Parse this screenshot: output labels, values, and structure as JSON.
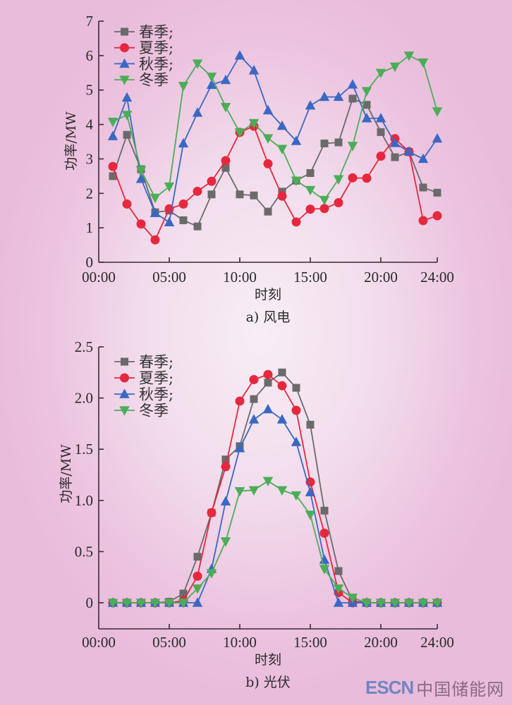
{
  "colors": {
    "spring": "#6a6a6a",
    "summer": "#e6283f",
    "autumn": "#3a68c2",
    "winter": "#4cad58"
  },
  "chart_data": [
    {
      "id": "wind",
      "type": "line",
      "title": "a) 风电",
      "xlabel": "时刻",
      "ylabel": "功率/MW",
      "xlim": [
        0,
        24
      ],
      "ylim": [
        0,
        7
      ],
      "x_ticks": [
        0,
        5,
        10,
        15,
        20,
        24
      ],
      "x_tick_labels": [
        "00:00",
        "05:00",
        "10:00",
        "15:00",
        "20:00",
        "24:00"
      ],
      "y_ticks": [
        0,
        1,
        2,
        3,
        4,
        5,
        6,
        7
      ],
      "y_tick_labels": [
        "0",
        "1",
        "2",
        "3",
        "4",
        "5",
        "6",
        "7"
      ],
      "legend_position": "top-left",
      "grid": false,
      "x": [
        1,
        2,
        3,
        4,
        5,
        6,
        7,
        8,
        9,
        10,
        11,
        12,
        13,
        14,
        15,
        16,
        17,
        18,
        19,
        20,
        21,
        22,
        23,
        24
      ],
      "series": [
        {
          "key": "spring",
          "name": "春季;",
          "marker": "square",
          "values": [
            2.5,
            3.7,
            2.7,
            1.45,
            1.5,
            1.22,
            1.04,
            1.97,
            2.74,
            1.97,
            1.94,
            1.47,
            2.05,
            2.37,
            2.59,
            3.45,
            3.48,
            4.75,
            4.57,
            3.78,
            3.05,
            3.2,
            2.17,
            2.02
          ]
        },
        {
          "key": "summer",
          "name": "夏季;",
          "marker": "circle",
          "values": [
            2.78,
            1.69,
            1.11,
            0.65,
            1.55,
            1.69,
            2.06,
            2.35,
            2.95,
            3.77,
            3.95,
            2.86,
            1.92,
            1.17,
            1.54,
            1.56,
            1.73,
            2.45,
            2.44,
            3.08,
            3.59,
            3.21,
            1.21,
            1.35
          ]
        },
        {
          "key": "autumn",
          "name": "秋季;",
          "marker": "triangle-up",
          "values": [
            3.66,
            4.78,
            2.42,
            1.43,
            1.16,
            3.45,
            4.34,
            5.15,
            5.29,
            6.0,
            5.57,
            4.41,
            3.96,
            3.52,
            4.55,
            4.8,
            4.8,
            5.16,
            4.18,
            4.18,
            3.46,
            3.21,
            3.0,
            3.59
          ]
        },
        {
          "key": "winter",
          "name": "冬季",
          "marker": "triangle-down",
          "values": [
            4.08,
            4.28,
            2.67,
            1.87,
            2.2,
            5.12,
            5.77,
            5.39,
            4.51,
            3.77,
            4.04,
            3.6,
            3.29,
            2.37,
            2.1,
            1.81,
            2.41,
            3.38,
            4.97,
            5.5,
            5.68,
            6.0,
            5.8,
            4.38
          ]
        }
      ]
    },
    {
      "id": "pv",
      "type": "line",
      "title": "b) 光伏",
      "xlabel": "时刻",
      "ylabel": "功率/MW",
      "xlim": [
        0,
        24
      ],
      "ylim": [
        -0.25,
        2.5
      ],
      "x_ticks": [
        0,
        5,
        10,
        15,
        20,
        24
      ],
      "x_tick_labels": [
        "00:00",
        "05:00",
        "10:00",
        "15:00",
        "20:00",
        "24:00"
      ],
      "y_ticks": [
        0,
        0.5,
        1.0,
        1.5,
        2.0,
        2.5
      ],
      "y_tick_labels": [
        "0",
        "0.5",
        "1.0",
        "1.5",
        "2.0",
        "2.5"
      ],
      "legend_position": "top-left",
      "grid": false,
      "x": [
        1,
        2,
        3,
        4,
        5,
        6,
        7,
        8,
        9,
        10,
        11,
        12,
        13,
        14,
        15,
        16,
        17,
        18,
        19,
        20,
        21,
        22,
        23,
        24
      ],
      "series": [
        {
          "key": "spring",
          "name": "春季;",
          "marker": "square",
          "values": [
            0,
            0,
            0,
            0,
            0.01,
            0.09,
            0.45,
            0.88,
            1.4,
            1.53,
            1.99,
            2.15,
            2.25,
            2.1,
            1.74,
            0.9,
            0.31,
            0.02,
            0,
            0,
            0,
            0,
            0,
            0
          ]
        },
        {
          "key": "summer",
          "name": "夏季;",
          "marker": "circle",
          "values": [
            0,
            0,
            0,
            0,
            0,
            0.02,
            0.26,
            0.88,
            1.33,
            1.97,
            2.18,
            2.23,
            2.12,
            1.88,
            1.18,
            0.68,
            0.1,
            0,
            0,
            0,
            0,
            0,
            0,
            0
          ]
        },
        {
          "key": "autumn",
          "name": "秋季;",
          "marker": "triangle-up",
          "values": [
            0,
            0,
            0,
            0,
            0,
            0,
            0,
            0.33,
            0.99,
            1.51,
            1.79,
            1.89,
            1.79,
            1.57,
            1.08,
            0.42,
            0,
            0,
            0,
            0,
            0,
            0,
            0,
            0
          ]
        },
        {
          "key": "winter",
          "name": "冬季",
          "marker": "triangle-down",
          "values": [
            0,
            0,
            0,
            0,
            0,
            0,
            0.14,
            0.29,
            0.6,
            1.09,
            1.1,
            1.19,
            1.1,
            1.05,
            0.86,
            0.33,
            0.14,
            0.05,
            0,
            0,
            0,
            0,
            0,
            0
          ]
        }
      ]
    }
  ],
  "watermark": {
    "brand": "ESCN",
    "name": "中国储能网"
  }
}
